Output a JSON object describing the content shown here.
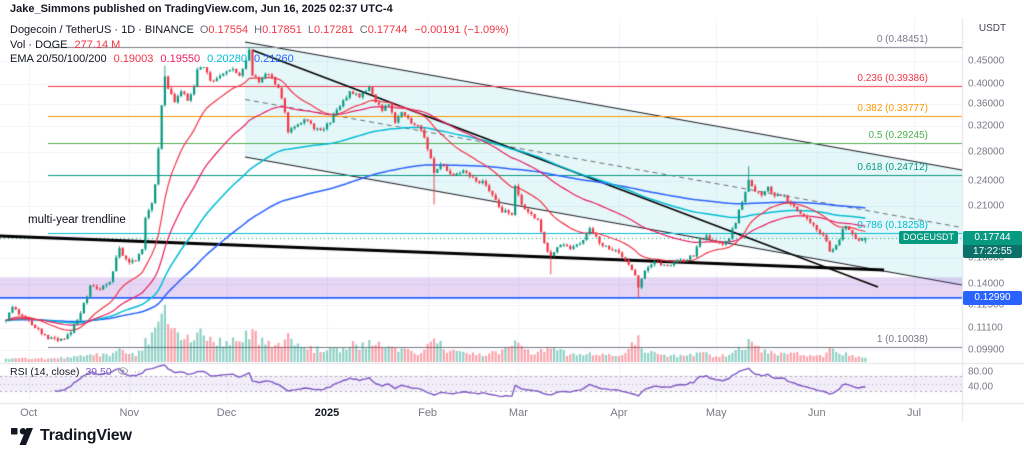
{
  "header": {
    "user": "Jake_Simmons",
    "rest": " published on TradingView.com, Jun 16, 2025 02:37 UTC-4"
  },
  "legend": {
    "title": "Dogecoin / TetherUS · 1D · BINANCE",
    "ohlc": [
      {
        "label": "O",
        "value": "0.17554"
      },
      {
        "label": "H",
        "value": "0.17851"
      },
      {
        "label": "L",
        "value": "0.17281"
      },
      {
        "label": "C",
        "value": "0.17744"
      }
    ],
    "change": "−0.00191 (−1.09%)",
    "change_color": "#f23645",
    "volume": {
      "title": "Vol · DOGE",
      "value": "277.14 M",
      "value_color": "#f23645"
    },
    "ema": {
      "label": "EMA 20/50/100/200",
      "values": [
        {
          "value": "0.19003",
          "color": "#f23645"
        },
        {
          "value": "0.19550",
          "color": "#e91e63"
        },
        {
          "value": "0.20280",
          "color": "#00bcd4"
        },
        {
          "value": "0.21260",
          "color": "#2962ff"
        }
      ]
    }
  },
  "rsi_pane": {
    "title": "RSI (14, close)",
    "value": "39.50",
    "value_color": "#7e57c2",
    "axis_labels": [
      {
        "text": "80.00",
        "value": 80
      },
      {
        "text": "40.00",
        "value": 40
      }
    ]
  },
  "price_axis": {
    "currency": "USDT",
    "labels": [
      {
        "text": "0.45000",
        "value": 0.45
      },
      {
        "text": "0.40000",
        "value": 0.4
      },
      {
        "text": "0.36000",
        "value": 0.36
      },
      {
        "text": "0.32000",
        "value": 0.32
      },
      {
        "text": "0.28000",
        "value": 0.28
      },
      {
        "text": "0.24000",
        "value": 0.24
      },
      {
        "text": "0.21000",
        "value": 0.21
      },
      {
        "text": "0.18000",
        "value": 0.18
      },
      {
        "text": "0.16000",
        "value": 0.16
      },
      {
        "text": "0.14000",
        "value": 0.14
      },
      {
        "text": "0.12500",
        "value": 0.125
      },
      {
        "text": "0.11100",
        "value": 0.111
      },
      {
        "text": "0.09900",
        "value": 0.099
      }
    ],
    "current_price_badge": {
      "text": "0.17744",
      "countdown": "17:22:55",
      "color": "#089981",
      "countdown_color": "#0c7168"
    },
    "line_badge": {
      "text": "0.12990",
      "color": "#2962ff"
    },
    "symbol_tag": {
      "text": "DOGEUSDT",
      "color": "#089981"
    }
  },
  "time_axis": {
    "labels": [
      {
        "text": "Oct",
        "i": 7,
        "year": false
      },
      {
        "text": "Nov",
        "i": 38,
        "year": false
      },
      {
        "text": "Dec",
        "i": 68,
        "year": false
      },
      {
        "text": "2025",
        "i": 99,
        "year": true
      },
      {
        "text": "Feb",
        "i": 130,
        "year": false
      },
      {
        "text": "Mar",
        "i": 158,
        "year": false
      },
      {
        "text": "Apr",
        "i": 189,
        "year": false
      },
      {
        "text": "May",
        "i": 219,
        "year": false
      },
      {
        "text": "Jun",
        "i": 250,
        "year": false
      },
      {
        "text": "Jul",
        "i": 280,
        "year": false
      }
    ]
  },
  "annotations": {
    "trendline_label": "multi-year trendline"
  },
  "footer": {
    "logo_text": "TradingView"
  },
  "chart_data": {
    "type": "candlestick",
    "title": "Dogecoin / TetherUS, 1D, BINANCE",
    "symbol": "DOGEUSDT",
    "interval": "1D",
    "scale": "log",
    "y_range": [
      0.095,
      0.52
    ],
    "x_labels": [
      "Oct",
      "Nov",
      "Dec",
      "2025",
      "Feb",
      "Mar",
      "Apr",
      "May",
      "Jun",
      "Jul"
    ],
    "last_candle": {
      "open": 0.17554,
      "high": 0.17851,
      "low": 0.17281,
      "close": 0.17744,
      "change": -0.00191,
      "change_pct": -1.09
    },
    "volume_display": "277.14 M",
    "close_anchors": [
      [
        0,
        0.115
      ],
      [
        2,
        0.124
      ],
      [
        5,
        0.118
      ],
      [
        9,
        0.111
      ],
      [
        13,
        0.105
      ],
      [
        17,
        0.104
      ],
      [
        20,
        0.108
      ],
      [
        23,
        0.12
      ],
      [
        26,
        0.138
      ],
      [
        29,
        0.136
      ],
      [
        32,
        0.142
      ],
      [
        35,
        0.168
      ],
      [
        37,
        0.158
      ],
      [
        40,
        0.157
      ],
      [
        42,
        0.168
      ],
      [
        43,
        0.197
      ],
      [
        45,
        0.214
      ],
      [
        46,
        0.235
      ],
      [
        47,
        0.285
      ],
      [
        48,
        0.36
      ],
      [
        49,
        0.415
      ],
      [
        50,
        0.39
      ],
      [
        52,
        0.36
      ],
      [
        54,
        0.386
      ],
      [
        56,
        0.365
      ],
      [
        58,
        0.395
      ],
      [
        59,
        0.428
      ],
      [
        61,
        0.44
      ],
      [
        63,
        0.403
      ],
      [
        65,
        0.412
      ],
      [
        68,
        0.424
      ],
      [
        70,
        0.43
      ],
      [
        72,
        0.418
      ],
      [
        74,
        0.452
      ],
      [
        75,
        0.474
      ],
      [
        76,
        0.418
      ],
      [
        78,
        0.402
      ],
      [
        80,
        0.42
      ],
      [
        82,
        0.412
      ],
      [
        84,
        0.392
      ],
      [
        86,
        0.342
      ],
      [
        87,
        0.308
      ],
      [
        89,
        0.32
      ],
      [
        92,
        0.332
      ],
      [
        95,
        0.316
      ],
      [
        98,
        0.314
      ],
      [
        100,
        0.328
      ],
      [
        103,
        0.356
      ],
      [
        106,
        0.384
      ],
      [
        109,
        0.372
      ],
      [
        112,
        0.396
      ],
      [
        114,
        0.362
      ],
      [
        116,
        0.35
      ],
      [
        118,
        0.356
      ],
      [
        120,
        0.328
      ],
      [
        122,
        0.342
      ],
      [
        124,
        0.332
      ],
      [
        127,
        0.318
      ],
      [
        129,
        0.302
      ],
      [
        132,
        0.252
      ],
      [
        134,
        0.263
      ],
      [
        136,
        0.255
      ],
      [
        138,
        0.246
      ],
      [
        141,
        0.252
      ],
      [
        144,
        0.242
      ],
      [
        147,
        0.238
      ],
      [
        150,
        0.222
      ],
      [
        153,
        0.205
      ],
      [
        156,
        0.202
      ],
      [
        157,
        0.232
      ],
      [
        159,
        0.212
      ],
      [
        161,
        0.202
      ],
      [
        164,
        0.196
      ],
      [
        166,
        0.172
      ],
      [
        168,
        0.162
      ],
      [
        171,
        0.171
      ],
      [
        174,
        0.169
      ],
      [
        177,
        0.173
      ],
      [
        180,
        0.186
      ],
      [
        183,
        0.174
      ],
      [
        186,
        0.168
      ],
      [
        188,
        0.166
      ],
      [
        190,
        0.162
      ],
      [
        192,
        0.156
      ],
      [
        194,
        0.146
      ],
      [
        195,
        0.138
      ],
      [
        197,
        0.151
      ],
      [
        200,
        0.156
      ],
      [
        203,
        0.154
      ],
      [
        206,
        0.156
      ],
      [
        209,
        0.158
      ],
      [
        212,
        0.162
      ],
      [
        214,
        0.176
      ],
      [
        216,
        0.179
      ],
      [
        218,
        0.176
      ],
      [
        221,
        0.172
      ],
      [
        223,
        0.178
      ],
      [
        225,
        0.194
      ],
      [
        227,
        0.216
      ],
      [
        229,
        0.24
      ],
      [
        231,
        0.226
      ],
      [
        233,
        0.224
      ],
      [
        235,
        0.231
      ],
      [
        237,
        0.221
      ],
      [
        239,
        0.224
      ],
      [
        241,
        0.217
      ],
      [
        243,
        0.211
      ],
      [
        246,
        0.199
      ],
      [
        248,
        0.191
      ],
      [
        249,
        0.189
      ],
      [
        252,
        0.181
      ],
      [
        254,
        0.167
      ],
      [
        256,
        0.171
      ],
      [
        258,
        0.185
      ],
      [
        259,
        0.189
      ],
      [
        261,
        0.181
      ],
      [
        263,
        0.176
      ],
      [
        265,
        0.17744
      ]
    ],
    "volume_anchors": [
      [
        0,
        0.06
      ],
      [
        10,
        0.05
      ],
      [
        20,
        0.07
      ],
      [
        26,
        0.14
      ],
      [
        32,
        0.1
      ],
      [
        35,
        0.18
      ],
      [
        40,
        0.1
      ],
      [
        43,
        0.3
      ],
      [
        46,
        0.45
      ],
      [
        47,
        0.6
      ],
      [
        48,
        0.85
      ],
      [
        49,
        1.0
      ],
      [
        50,
        0.72
      ],
      [
        52,
        0.48
      ],
      [
        54,
        0.42
      ],
      [
        56,
        0.35
      ],
      [
        59,
        0.5
      ],
      [
        61,
        0.42
      ],
      [
        63,
        0.33
      ],
      [
        68,
        0.3
      ],
      [
        72,
        0.33
      ],
      [
        75,
        0.45
      ],
      [
        76,
        0.48
      ],
      [
        80,
        0.28
      ],
      [
        84,
        0.24
      ],
      [
        86,
        0.38
      ],
      [
        87,
        0.42
      ],
      [
        92,
        0.22
      ],
      [
        98,
        0.18
      ],
      [
        103,
        0.22
      ],
      [
        106,
        0.26
      ],
      [
        112,
        0.3
      ],
      [
        114,
        0.26
      ],
      [
        120,
        0.22
      ],
      [
        127,
        0.16
      ],
      [
        129,
        0.2
      ],
      [
        132,
        0.38
      ],
      [
        136,
        0.18
      ],
      [
        141,
        0.14
      ],
      [
        147,
        0.13
      ],
      [
        153,
        0.16
      ],
      [
        157,
        0.28
      ],
      [
        161,
        0.16
      ],
      [
        166,
        0.17
      ],
      [
        168,
        0.22
      ],
      [
        174,
        0.11
      ],
      [
        180,
        0.12
      ],
      [
        186,
        0.1
      ],
      [
        190,
        0.11
      ],
      [
        195,
        0.34
      ],
      [
        197,
        0.18
      ],
      [
        203,
        0.1
      ],
      [
        209,
        0.09
      ],
      [
        214,
        0.15
      ],
      [
        218,
        0.1
      ],
      [
        223,
        0.12
      ],
      [
        227,
        0.26
      ],
      [
        229,
        0.3
      ],
      [
        233,
        0.18
      ],
      [
        237,
        0.14
      ],
      [
        241,
        0.12
      ],
      [
        246,
        0.13
      ],
      [
        249,
        0.11
      ],
      [
        252,
        0.1
      ],
      [
        254,
        0.2
      ],
      [
        258,
        0.13
      ],
      [
        259,
        0.14
      ],
      [
        262,
        0.08
      ],
      [
        265,
        0.07
      ]
    ],
    "wick_overrides": {
      "49": {
        "high": 0.439
      },
      "75": {
        "high": 0.48451
      },
      "132": {
        "low": 0.212
      },
      "168": {
        "low": 0.147
      },
      "195": {
        "low": 0.1299
      },
      "229": {
        "high": 0.259
      }
    },
    "emas": [
      {
        "period": 20,
        "value": 0.19003,
        "color": "#f23645"
      },
      {
        "period": 50,
        "value": 0.1955,
        "color": "#e91e63"
      },
      {
        "period": 100,
        "value": 0.2028,
        "color": "#00bcd4"
      },
      {
        "period": 200,
        "value": 0.2126,
        "color": "#2962ff"
      }
    ],
    "fib_levels": [
      {
        "label": "0 (0.48451)",
        "price": 0.48451,
        "color": "#787b86"
      },
      {
        "label": "0.236 (0.39386)",
        "price": 0.39386,
        "color": "#f23645"
      },
      {
        "label": "0.382 (0.33777)",
        "price": 0.33777,
        "color": "#ff9800"
      },
      {
        "label": "0.5 (0.29245)",
        "price": 0.29245,
        "color": "#4caf50"
      },
      {
        "label": "0.618 (0.24712)",
        "price": 0.24712,
        "color": "#089981"
      },
      {
        "label": "0.786 (0.18258)",
        "price": 0.18258,
        "color": "#00bcd4"
      },
      {
        "label": "1 (0.10038)",
        "price": 0.10038,
        "color": "#787b86"
      }
    ],
    "support_band": {
      "top": 0.1447,
      "bottom": 0.1302,
      "color": "rgba(143,68,204,0.22)"
    },
    "blue_line": {
      "price": 0.1299,
      "color": "#2962ff"
    },
    "channel": {
      "fill": "rgba(0,172,193,0.10)",
      "line_color": "#1b1f27"
    },
    "rsi": {
      "period": 14,
      "current": 39.5,
      "color": "#7e57c2",
      "bands": [
        70,
        30
      ]
    },
    "candle_colors": {
      "up": "#089981",
      "down": "#f23645"
    }
  }
}
